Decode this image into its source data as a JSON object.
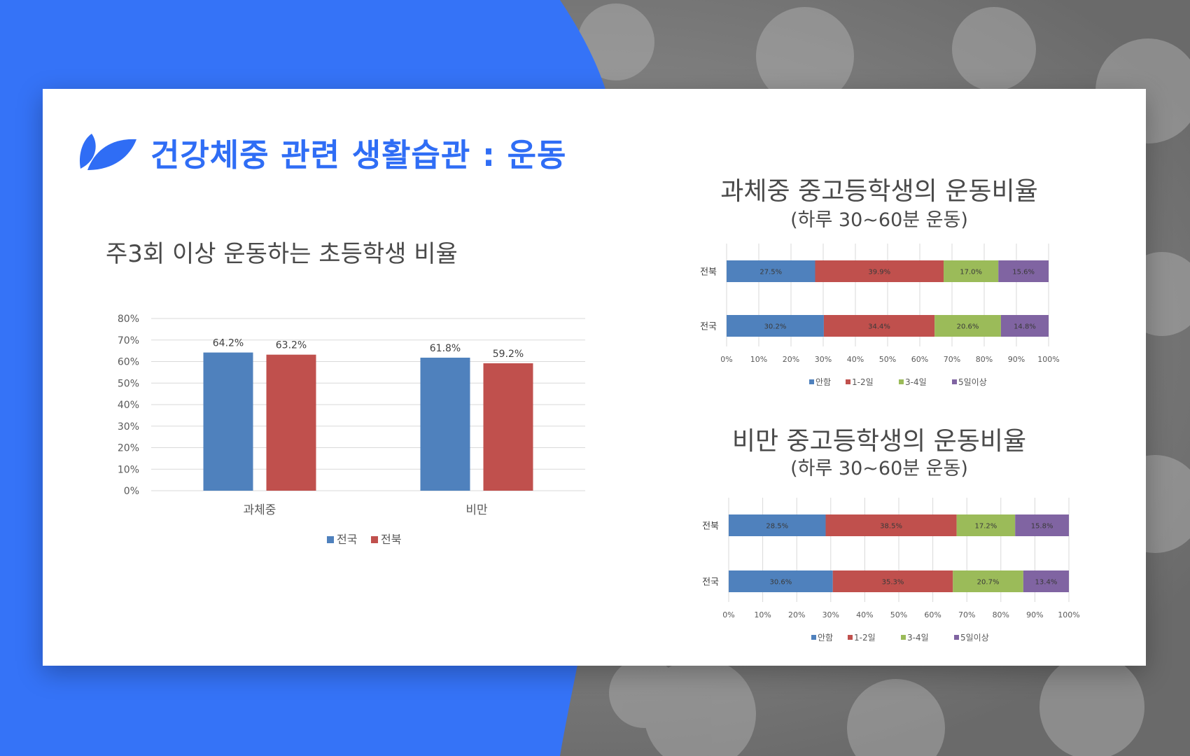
{
  "title": "건강체중 관련 생활습관 : 운동",
  "colors": {
    "accent": "#2f6df5",
    "national": "#4f81bd",
    "jeonbuk": "#c0504d",
    "none": "#4f81bd",
    "d12": "#c0504d",
    "d34": "#9bbb59",
    "d5": "#8064a2"
  },
  "chart_data": [
    {
      "type": "bar",
      "title": "주3회 이상 운동하는 초등학생 비율",
      "categories": [
        "과체중",
        "비만"
      ],
      "series": [
        {
          "name": "전국",
          "values": [
            64.2,
            61.8
          ]
        },
        {
          "name": "전북",
          "values": [
            63.2,
            59.2
          ]
        }
      ],
      "data_labels": [
        [
          "64.2%",
          "61.8%"
        ],
        [
          "63.2%",
          "59.2%"
        ]
      ],
      "yticks": [
        "0%",
        "10%",
        "20%",
        "30%",
        "40%",
        "50%",
        "60%",
        "70%",
        "80%"
      ],
      "ylim": [
        0,
        80
      ],
      "legend": "bottom",
      "grid": true
    },
    {
      "type": "bar",
      "orientation": "horizontal-stacked-100",
      "title": "과체중 중고등학생의 운동비율",
      "subtitle": "(하루 30~60분 운동)",
      "categories": [
        "전북",
        "전국"
      ],
      "series": [
        {
          "name": "안함",
          "values": [
            27.5,
            30.2
          ]
        },
        {
          "name": "1-2일",
          "values": [
            39.9,
            34.4
          ]
        },
        {
          "name": "3-4일",
          "values": [
            17.0,
            20.6
          ]
        },
        {
          "name": "5일이상",
          "values": [
            15.6,
            14.8
          ]
        }
      ],
      "data_labels": [
        [
          "27.5%",
          "30.2%"
        ],
        [
          "39.9%",
          "34.4%"
        ],
        [
          "17.0%",
          "20.6%"
        ],
        [
          "15.6%",
          "14.8%"
        ]
      ],
      "xticks": [
        "0%",
        "10%",
        "20%",
        "30%",
        "40%",
        "50%",
        "60%",
        "70%",
        "80%",
        "90%",
        "100%"
      ],
      "xlim": [
        0,
        100
      ],
      "legend": "bottom",
      "grid": true
    },
    {
      "type": "bar",
      "orientation": "horizontal-stacked-100",
      "title": "비만 중고등학생의 운동비율",
      "subtitle": "(하루 30~60분 운동)",
      "categories": [
        "전북",
        "전국"
      ],
      "series": [
        {
          "name": "안함",
          "values": [
            28.5,
            30.6
          ]
        },
        {
          "name": "1-2일",
          "values": [
            38.5,
            35.3
          ]
        },
        {
          "name": "3-4일",
          "values": [
            17.2,
            20.7
          ]
        },
        {
          "name": "5일이상",
          "values": [
            15.8,
            13.4
          ]
        }
      ],
      "data_labels": [
        [
          "28.5%",
          "30.6%"
        ],
        [
          "38.5%",
          "35.3%"
        ],
        [
          "17.2%",
          "20.7%"
        ],
        [
          "15.8%",
          "13.4%"
        ]
      ],
      "xticks": [
        "0%",
        "10%",
        "20%",
        "30%",
        "40%",
        "50%",
        "60%",
        "70%",
        "80%",
        "90%",
        "100%"
      ],
      "xlim": [
        0,
        100
      ],
      "legend": "bottom",
      "grid": true
    }
  ]
}
